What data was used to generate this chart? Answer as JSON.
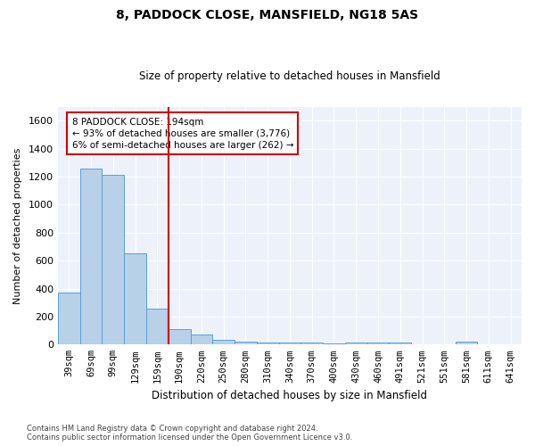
{
  "title": "8, PADDOCK CLOSE, MANSFIELD, NG18 5AS",
  "subtitle": "Size of property relative to detached houses in Mansfield",
  "xlabel": "Distribution of detached houses by size in Mansfield",
  "ylabel": "Number of detached properties",
  "footnote1": "Contains HM Land Registry data © Crown copyright and database right 2024.",
  "footnote2": "Contains public sector information licensed under the Open Government Licence v3.0.",
  "annotation_line1": "8 PADDOCK CLOSE: 194sqm",
  "annotation_line2": "← 93% of detached houses are smaller (3,776)",
  "annotation_line3": "6% of semi-detached houses are larger (262) →",
  "bar_color": "#b8d0e8",
  "bar_edge_color": "#5a9fd4",
  "vline_color": "#cc0000",
  "annotation_box_color": "#cc0000",
  "categories": [
    "39sqm",
    "69sqm",
    "99sqm",
    "129sqm",
    "159sqm",
    "190sqm",
    "220sqm",
    "250sqm",
    "280sqm",
    "310sqm",
    "340sqm",
    "370sqm",
    "400sqm",
    "430sqm",
    "460sqm",
    "491sqm",
    "521sqm",
    "551sqm",
    "581sqm",
    "611sqm",
    "641sqm"
  ],
  "values": [
    370,
    1260,
    1210,
    650,
    260,
    110,
    70,
    35,
    22,
    12,
    12,
    12,
    10,
    12,
    12,
    12,
    0,
    0,
    20,
    0,
    0
  ],
  "ylim": [
    0,
    1700
  ],
  "yticks": [
    0,
    200,
    400,
    600,
    800,
    1000,
    1200,
    1400,
    1600
  ],
  "vline_x_pos": 4.5,
  "figsize": [
    6.0,
    5.0
  ],
  "dpi": 100,
  "background_color": "#edf2fa"
}
